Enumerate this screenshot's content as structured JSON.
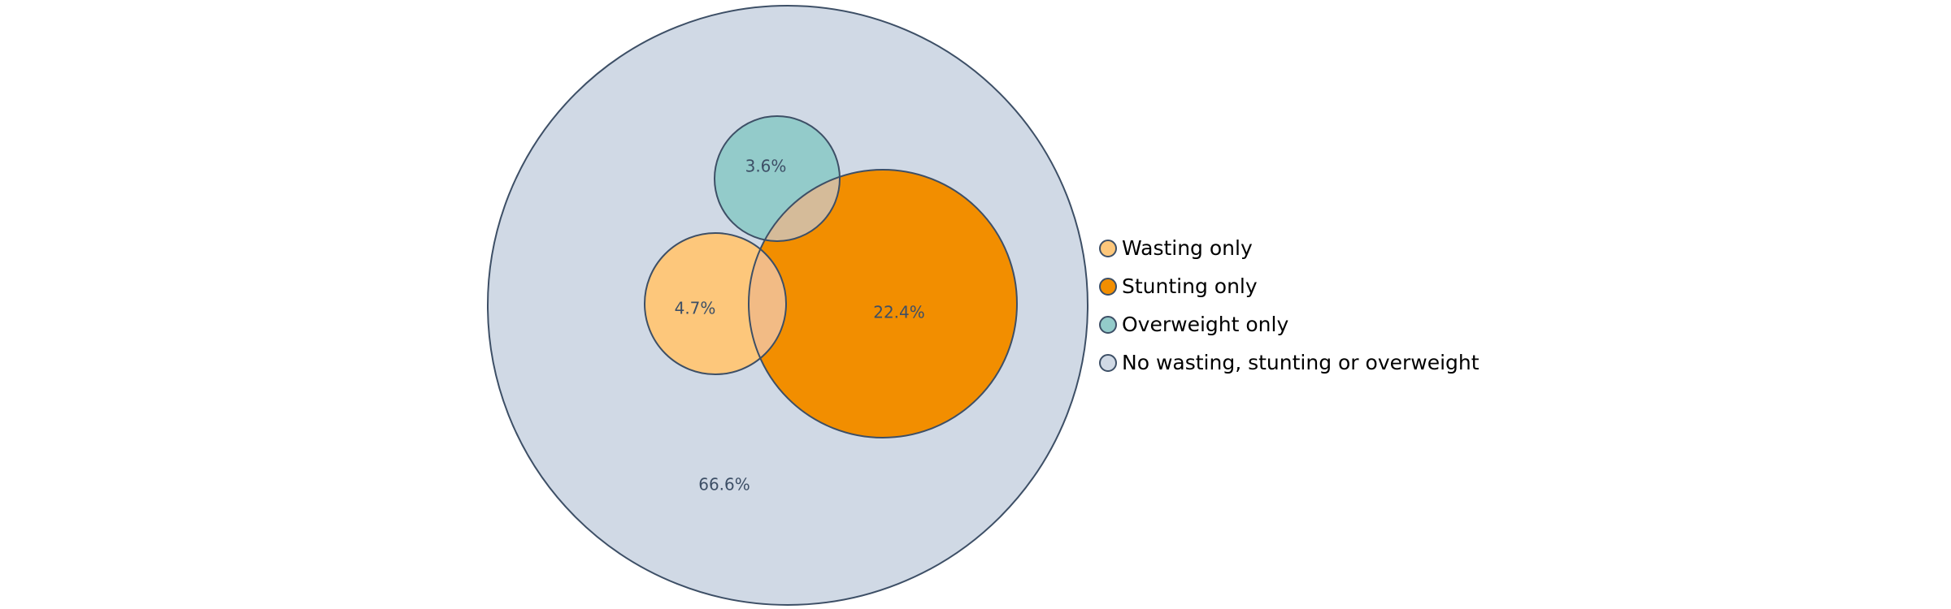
{
  "chart_data": {
    "type": "venn",
    "title": "",
    "sets": [
      {
        "key": "none",
        "legend": "No wasting, stunting or overweight",
        "label": "66.6%",
        "value": 66.6,
        "color": "#d0d9e5"
      },
      {
        "key": "stunting",
        "legend": "Stunting only",
        "label": "22.4%",
        "value": 22.4,
        "color": "#f28e00"
      },
      {
        "key": "wasting",
        "legend": "Wasting only",
        "label": "4.7%",
        "value": 4.7,
        "color": "#fdc77b"
      },
      {
        "key": "overweight",
        "legend": "Overweight only",
        "label": "3.6%",
        "value": 3.6,
        "color": "#93cbca"
      }
    ],
    "overlaps": [
      {
        "sets": [
          "stunting",
          "overweight"
        ],
        "color": "#d5bb99"
      },
      {
        "sets": [
          "stunting",
          "wasting"
        ],
        "color": "#f2bb85"
      }
    ],
    "legend_order": [
      "wasting",
      "stunting",
      "overweight",
      "none"
    ],
    "legend_position": "right",
    "outline_color": "#3d4f66",
    "label_color": "#3d4f66"
  }
}
